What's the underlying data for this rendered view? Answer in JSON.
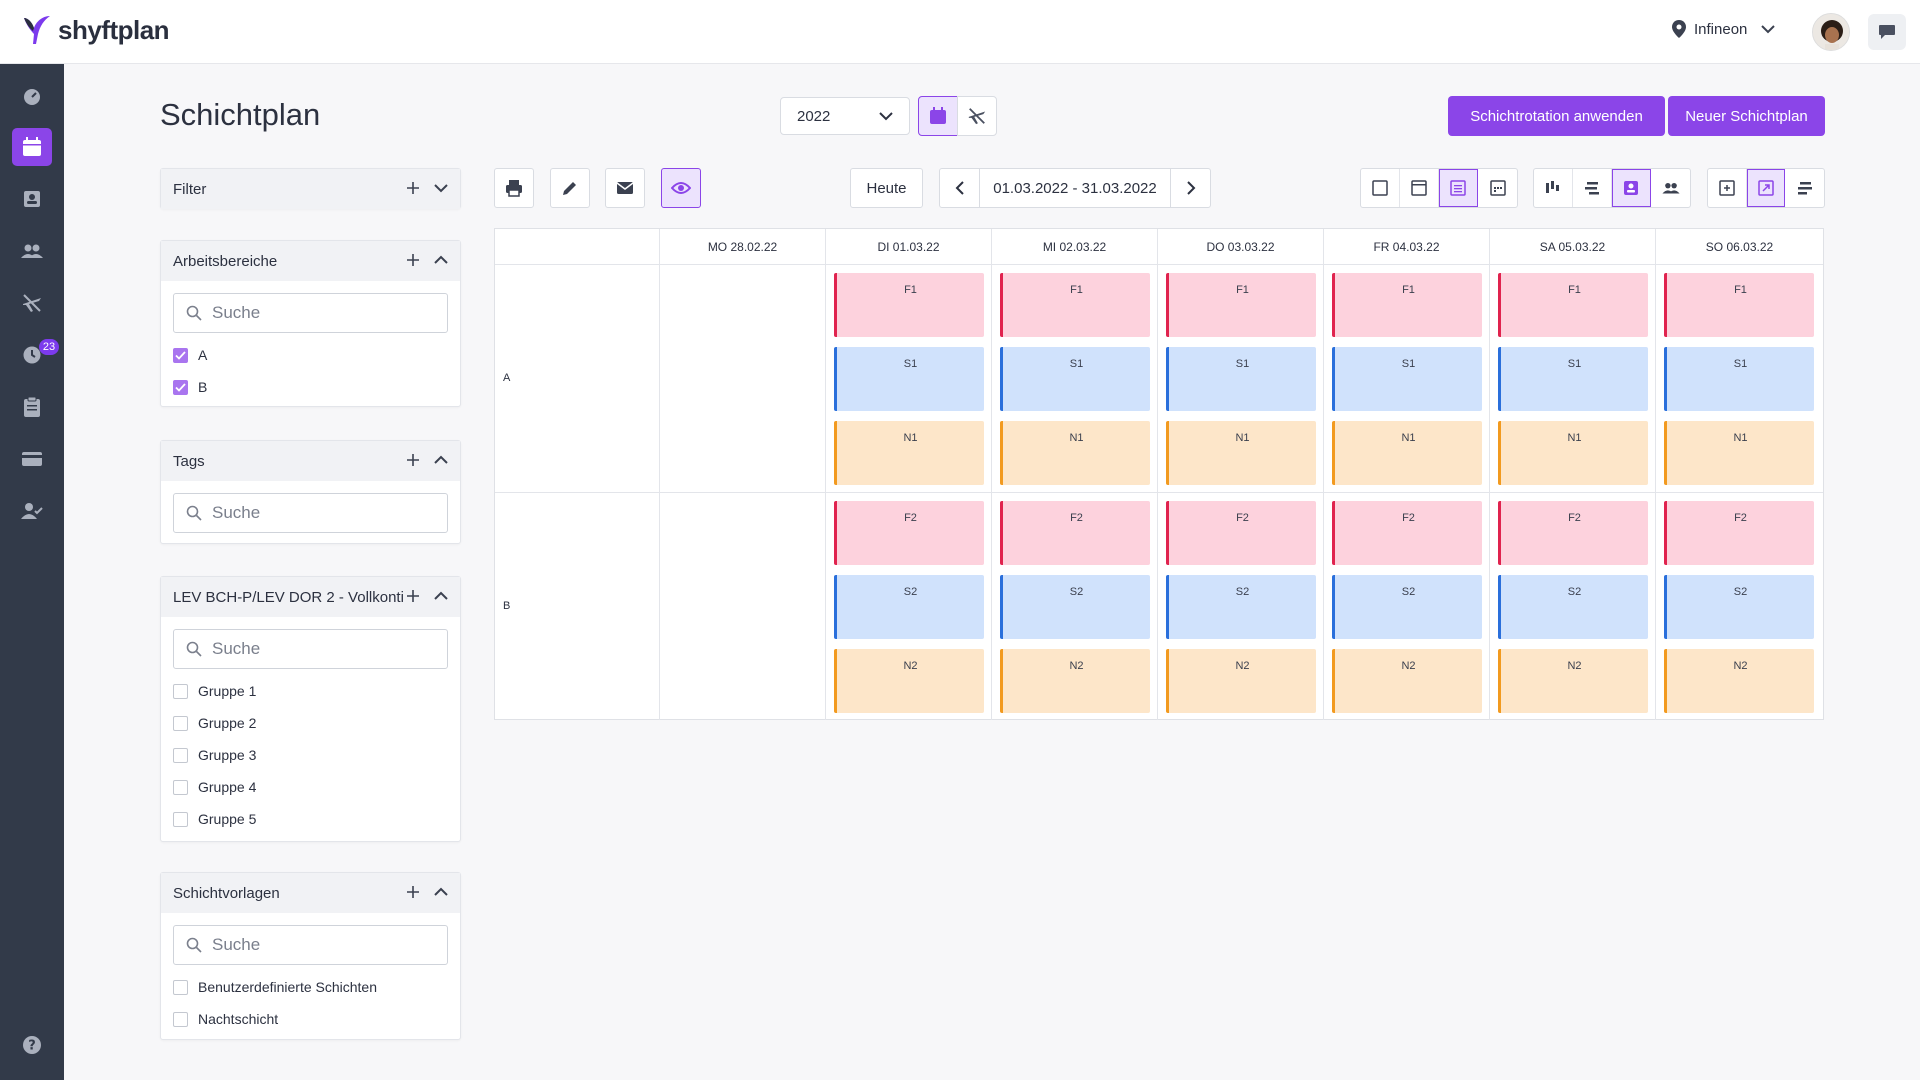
{
  "app": {
    "logo_text": "shyftplan",
    "location": "Infineon",
    "absence_badge": "23"
  },
  "sidebar": {
    "items": [
      {
        "name": "dashboard",
        "icon": "speedometer-icon"
      },
      {
        "name": "shiftplan",
        "icon": "calendar-icon",
        "active": true
      },
      {
        "name": "employees-profile",
        "icon": "id-card-icon"
      },
      {
        "name": "team",
        "icon": "people-icon"
      },
      {
        "name": "absences",
        "icon": "plane-off-icon"
      },
      {
        "name": "time-tracking",
        "icon": "clock-icon"
      },
      {
        "name": "reports",
        "icon": "clipboard-icon"
      },
      {
        "name": "payment",
        "icon": "credit-card-icon"
      },
      {
        "name": "approvals",
        "icon": "person-check-icon"
      }
    ],
    "help_icon": "help-icon"
  },
  "header": {
    "title": "Schichtplan",
    "year": "2022",
    "apply_rotation_label": "Schichtrotation anwenden",
    "new_plan_label": "Neuer Schichtplan"
  },
  "filters": {
    "filter_title": "Filter",
    "areas": {
      "title": "Arbeitsbereiche",
      "search_placeholder": "Suche",
      "options": [
        {
          "label": "A",
          "checked": true
        },
        {
          "label": "B",
          "checked": true
        }
      ]
    },
    "tags": {
      "title": "Tags",
      "search_placeholder": "Suche"
    },
    "location_group": {
      "title": "LEV BCH-P/LEV DOR 2 - Vollkonti",
      "search_placeholder": "Suche",
      "options": [
        {
          "label": "Gruppe 1",
          "checked": false
        },
        {
          "label": "Gruppe 2",
          "checked": false
        },
        {
          "label": "Gruppe 3",
          "checked": false
        },
        {
          "label": "Gruppe 4",
          "checked": false
        },
        {
          "label": "Gruppe 5",
          "checked": false
        }
      ]
    },
    "templates": {
      "title": "Schichtvorlagen",
      "search_placeholder": "Suche",
      "options": [
        {
          "label": "Benutzerdefinierte Schichten",
          "checked": false
        },
        {
          "label": "Nachtschicht",
          "checked": false
        }
      ]
    }
  },
  "toolbar": {
    "today_label": "Heute",
    "date_range": "01.03.2022 - 31.03.2022"
  },
  "schedule": {
    "days": [
      "MO 28.02.22",
      "DI 01.03.22",
      "MI 02.03.22",
      "DO 03.03.22",
      "FR 04.03.22",
      "SA 05.03.22",
      "SO 06.03.22"
    ],
    "rows": [
      {
        "label": "A",
        "shifts": [
          "F1",
          "S1",
          "N1"
        ]
      },
      {
        "label": "B",
        "shifts": [
          "F2",
          "S2",
          "N2"
        ]
      }
    ],
    "colors": {
      "early_bg": "#fdd2dd",
      "early_border": "#e0234e",
      "late_bg": "#d0e2fc",
      "late_border": "#2a6fdb",
      "night_bg": "#fde6c9",
      "night_border": "#f29a1f"
    }
  },
  "colors": {
    "accent": "#8b45e8",
    "sidebar_bg": "#323a49"
  }
}
